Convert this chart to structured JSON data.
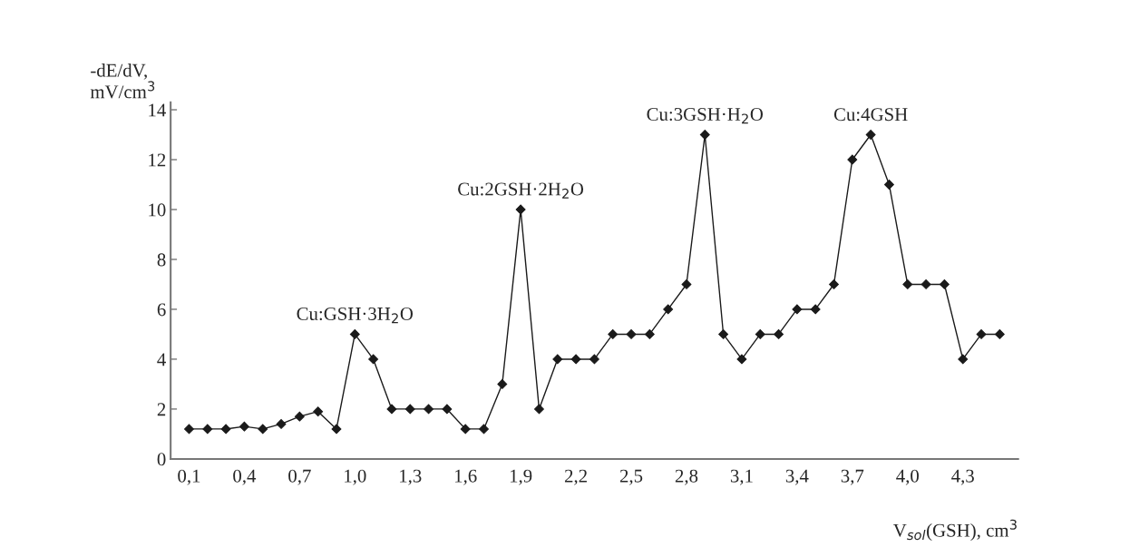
{
  "chart_data": {
    "type": "line",
    "xlabel": "V$_{sol}$(GSH), cm$^{3}$",
    "ylabel": "-dE/dV,\nmV/cm$^{3}$",
    "x": [
      0.1,
      0.2,
      0.3,
      0.4,
      0.5,
      0.6,
      0.7,
      0.8,
      0.9,
      1.0,
      1.1,
      1.2,
      1.3,
      1.4,
      1.5,
      1.6,
      1.7,
      1.8,
      1.9,
      2.0,
      2.1,
      2.2,
      2.3,
      2.4,
      2.5,
      2.6,
      2.7,
      2.8,
      2.9,
      3.0,
      3.1,
      3.2,
      3.3,
      3.4,
      3.5,
      3.6,
      3.7,
      3.8,
      3.9,
      4.0,
      4.1,
      4.2,
      4.3,
      4.4,
      4.5
    ],
    "series": [
      {
        "color": "#1a1a1a",
        "values": [
          1.2,
          1.2,
          1.2,
          1.3,
          1.2,
          1.4,
          1.7,
          1.9,
          1.2,
          5,
          4,
          2,
          2,
          2,
          2,
          1.2,
          1.2,
          3,
          10,
          2,
          4,
          4,
          4,
          5,
          5,
          5,
          6,
          7,
          13,
          5,
          4,
          5,
          5,
          6,
          6,
          7,
          12,
          13,
          11,
          7,
          7,
          7,
          4,
          5,
          5
        ]
      }
    ],
    "xlim": [
      0,
      4.6
    ],
    "ylim": [
      0,
      14.3
    ],
    "xticks": [
      {
        "value": 0.1,
        "label": "0,1"
      },
      {
        "value": 0.4,
        "label": "0,4"
      },
      {
        "value": 0.7,
        "label": "0,7"
      },
      {
        "value": 1.0,
        "label": "1,0"
      },
      {
        "value": 1.3,
        "label": "1,3"
      },
      {
        "value": 1.6,
        "label": "1,6"
      },
      {
        "value": 1.9,
        "label": "1,9"
      },
      {
        "value": 2.2,
        "label": "2,2"
      },
      {
        "value": 2.5,
        "label": "2,5"
      },
      {
        "value": 2.8,
        "label": "2,8"
      },
      {
        "value": 3.1,
        "label": "3,1"
      },
      {
        "value": 3.4,
        "label": "3,4"
      },
      {
        "value": 3.7,
        "label": "3,7"
      },
      {
        "value": 4.0,
        "label": "4,0"
      },
      {
        "value": 4.3,
        "label": "4,3"
      }
    ],
    "yticks": [
      0,
      2,
      4,
      6,
      8,
      10,
      12,
      14
    ],
    "marker": "diamond",
    "line_style": "solid",
    "grid": false,
    "annotations": [
      {
        "text": "Cu:GSH·3H$_{2}$O",
        "x": 1.0,
        "y": 5
      },
      {
        "text": "Cu:2GSH·2H$_{2}$O",
        "x": 1.9,
        "y": 10
      },
      {
        "text": "Cu:3GSH·H$_{2}$O",
        "x": 2.9,
        "y": 13
      },
      {
        "text": "Cu:4GSH",
        "x": 3.8,
        "y": 13
      }
    ]
  }
}
